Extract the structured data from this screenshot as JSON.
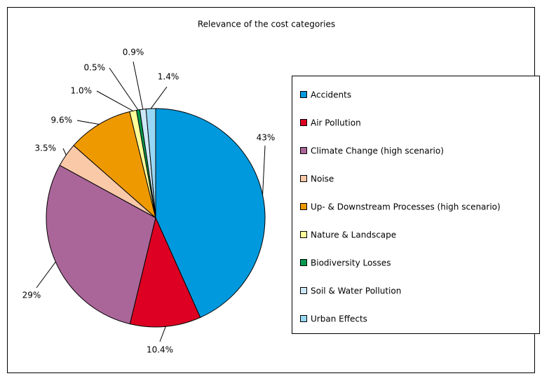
{
  "chart_data": {
    "type": "pie",
    "title": "Relevance of the cost categories",
    "categories": [
      "Accidents",
      "Air Pollution",
      "Climate Change (high scenario)",
      "Noise",
      "Up- & Downstream Processes (high scenario)",
      "Nature & Landscape",
      "Biodiversity Losses",
      "Soil & Water Pollution",
      "Urban Effects"
    ],
    "values": [
      43,
      10.4,
      29,
      3.5,
      9.6,
      1.0,
      0.5,
      0.9,
      1.4
    ],
    "value_labels": [
      "43%",
      "10.4%",
      "29%",
      "3.5%",
      "9.6%",
      "1.0%",
      "0.5%",
      "0.9%",
      "1.4%"
    ],
    "colors": [
      "#0099dd",
      "#dd0022",
      "#aa6699",
      "#f9c9a8",
      "#ee9900",
      "#ffff99",
      "#00994d",
      "#cce8f8",
      "#99d8f5"
    ],
    "legend": "right"
  }
}
